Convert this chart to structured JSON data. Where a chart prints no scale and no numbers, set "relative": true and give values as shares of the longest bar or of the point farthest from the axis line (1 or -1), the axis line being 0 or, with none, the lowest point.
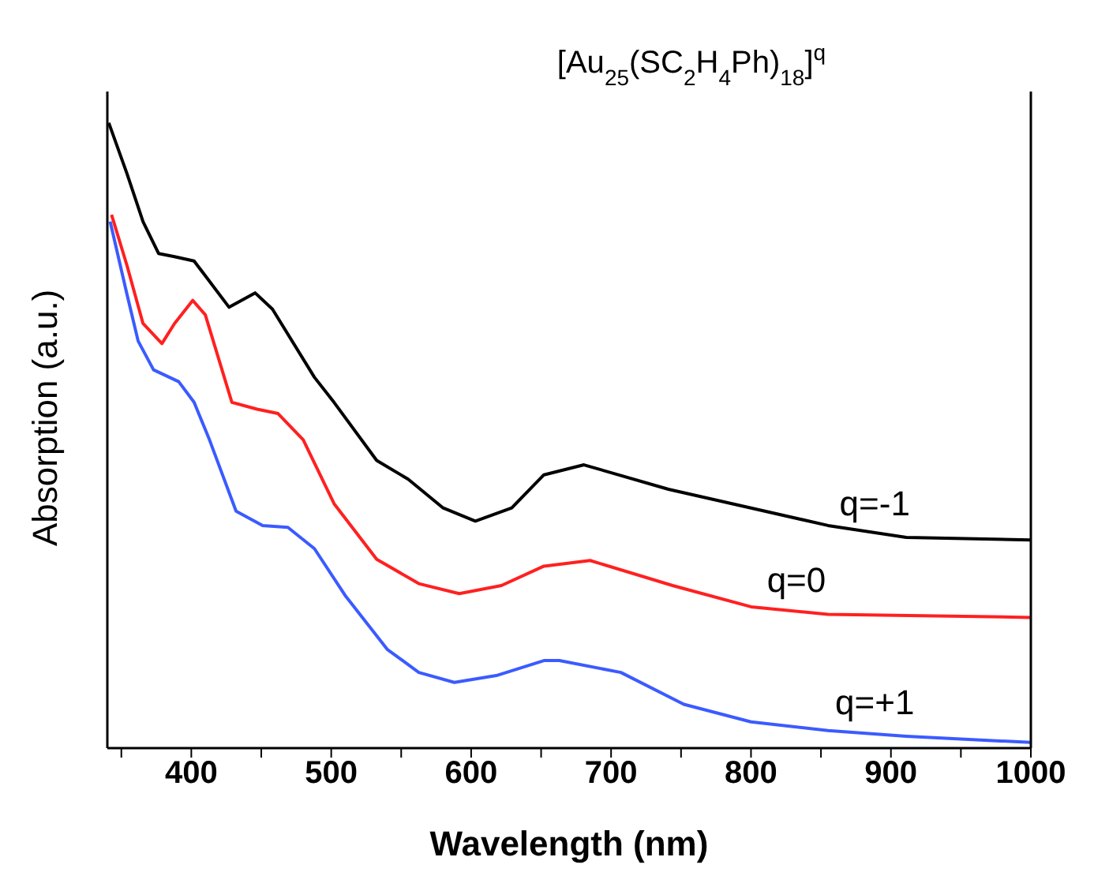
{
  "chart_data": {
    "type": "line",
    "title": "[Au$_{25}$(SC$_{2}$H$_{4}$Ph)$_{18}$]$^{q}$",
    "xlabel": "Wavelength (nm)",
    "ylabel": "Absorption (a.u.)",
    "relative": true,
    "legend": false,
    "grid": false,
    "marker": "none",
    "line_style": "solid",
    "xlim": [
      340,
      1000
    ],
    "xticks": [
      {
        "value": 350,
        "label": null
      },
      400,
      {
        "value": 450,
        "label": null
      },
      500,
      {
        "value": 550,
        "label": null
      },
      600,
      {
        "value": 650,
        "label": null
      },
      700,
      {
        "value": 750,
        "label": null
      },
      800,
      {
        "value": 850,
        "label": null
      },
      900,
      {
        "value": 950,
        "label": null
      },
      1000
    ],
    "series": [
      {
        "name": "q=-1",
        "color": "#000000",
        "x": [
          341,
          354,
          365.5,
          376.6,
          388,
          402,
          427,
          445.6,
          458,
          488,
          502,
          532.5,
          555,
          580,
          603,
          629,
          652,
          680.6,
          741,
          800,
          855,
          911,
          1000
        ],
        "values": [
          1.0,
          0.919,
          0.842,
          0.791,
          0.786,
          0.779,
          0.705,
          0.728,
          0.702,
          0.593,
          0.553,
          0.46,
          0.43,
          0.384,
          0.363,
          0.384,
          0.437,
          0.453,
          0.414,
          0.384,
          0.356,
          0.337,
          0.333
        ]
      },
      {
        "name": "q=0",
        "color": "#ff2020",
        "x": [
          343,
          354,
          365.5,
          379,
          388,
          401,
          410,
          429,
          447,
          462,
          480,
          502,
          532.5,
          562.6,
          591.5,
          621.6,
          652,
          685,
          744,
          800,
          855,
          1000
        ],
        "values": [
          0.853,
          0.772,
          0.679,
          0.647,
          0.679,
          0.716,
          0.693,
          0.553,
          0.542,
          0.535,
          0.493,
          0.391,
          0.302,
          0.263,
          0.247,
          0.26,
          0.291,
          0.3,
          0.26,
          0.226,
          0.214,
          0.209
        ]
      },
      {
        "name": "q=+1",
        "color": "#3b5bff",
        "x": [
          342,
          354,
          362,
          373,
          391,
          402,
          413,
          432,
          451,
          469,
          488,
          510,
          540,
          562.6,
          588,
          618,
          652,
          663,
          707,
          752,
          800,
          855,
          911,
          1000
        ],
        "values": [
          0.842,
          0.726,
          0.651,
          0.605,
          0.586,
          0.553,
          0.493,
          0.379,
          0.356,
          0.353,
          0.319,
          0.244,
          0.158,
          0.121,
          0.105,
          0.116,
          0.14,
          0.14,
          0.121,
          0.07,
          0.042,
          0.028,
          0.019,
          0.009
        ]
      }
    ]
  }
}
